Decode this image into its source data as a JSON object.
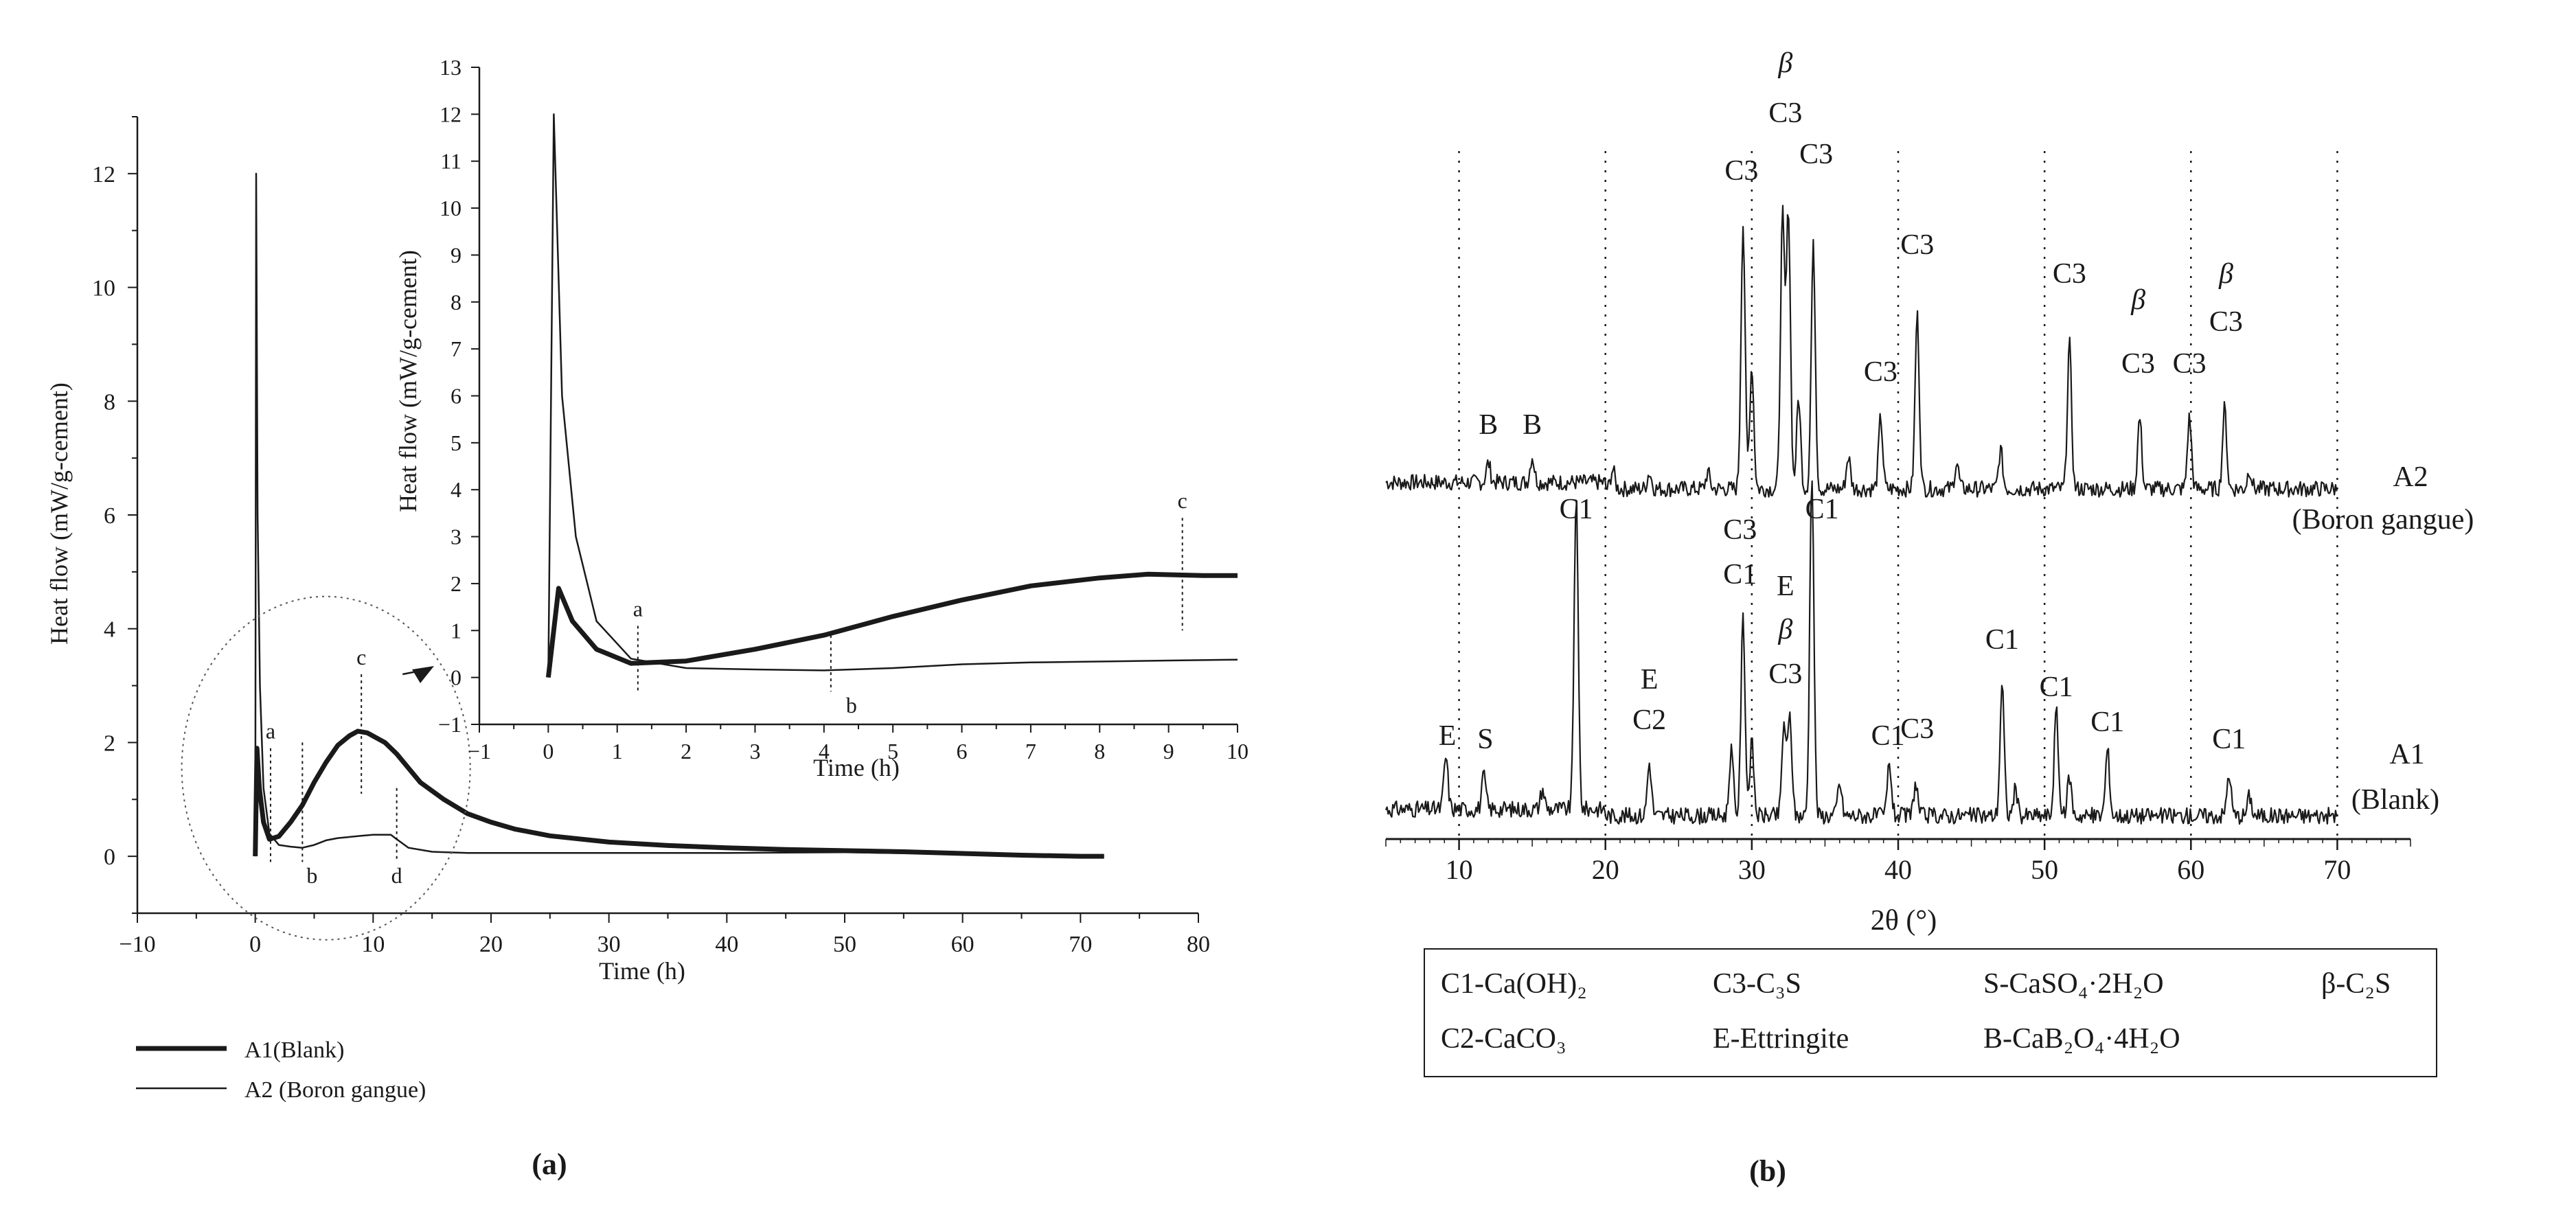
{
  "chart_data": [
    {
      "panel": "(a)",
      "type": "line",
      "xlabel": "Time (h)",
      "ylabel": "Heat flow (mW/g-cement)",
      "xlim": [
        -10,
        80
      ],
      "ylim": [
        -1,
        13
      ],
      "x_ticks": [
        "−10",
        "0",
        "10",
        "20",
        "30",
        "40",
        "50",
        "60",
        "70",
        "80"
      ],
      "y_ticks": [
        "0",
        "2",
        "4",
        "6",
        "8",
        "10",
        "12"
      ],
      "grid": false,
      "legend_position": "bottom-left",
      "series": [
        {
          "name": "A1(Blank)",
          "color": "#1a1a1a",
          "points": [
            [
              0,
              0
            ],
            [
              0.15,
              1.9
            ],
            [
              0.35,
              1.2
            ],
            [
              0.7,
              0.6
            ],
            [
              1.2,
              0.3
            ],
            [
              2,
              0.35
            ],
            [
              3,
              0.6
            ],
            [
              4,
              0.9
            ],
            [
              5,
              1.3
            ],
            [
              6,
              1.65
            ],
            [
              7,
              1.95
            ],
            [
              8,
              2.12
            ],
            [
              8.7,
              2.2
            ],
            [
              9.5,
              2.17
            ],
            [
              11,
              2.0
            ],
            [
              12,
              1.8
            ],
            [
              13,
              1.55
            ],
            [
              14,
              1.3
            ],
            [
              16,
              1.0
            ],
            [
              18,
              0.75
            ],
            [
              20,
              0.6
            ],
            [
              22,
              0.48
            ],
            [
              25,
              0.36
            ],
            [
              30,
              0.25
            ],
            [
              35,
              0.19
            ],
            [
              40,
              0.15
            ],
            [
              45,
              0.12
            ],
            [
              50,
              0.1
            ],
            [
              55,
              0.08
            ],
            [
              60,
              0.05
            ],
            [
              65,
              0.02
            ],
            [
              70,
              0.0
            ],
            [
              72,
              0.0
            ]
          ]
        },
        {
          "name": "A2 (Boron gangue)",
          "color": "#1a1a1a",
          "points": [
            [
              0,
              0
            ],
            [
              0.08,
              12.0
            ],
            [
              0.2,
              6.0
            ],
            [
              0.4,
              3.0
            ],
            [
              0.7,
              1.2
            ],
            [
              1.2,
              0.4
            ],
            [
              2,
              0.2
            ],
            [
              3,
              0.17
            ],
            [
              4,
              0.15
            ],
            [
              5,
              0.2
            ],
            [
              6,
              0.28
            ],
            [
              7,
              0.32
            ],
            [
              9,
              0.36
            ],
            [
              10,
              0.38
            ],
            [
              11.5,
              0.38
            ],
            [
              12,
              0.3
            ],
            [
              13,
              0.15
            ],
            [
              15,
              0.08
            ],
            [
              18,
              0.06
            ],
            [
              25,
              0.06
            ],
            [
              30,
              0.06
            ],
            [
              40,
              0.06
            ],
            [
              50,
              0.07
            ],
            [
              60,
              0.04
            ],
            [
              70,
              0.01
            ],
            [
              72,
              0.0
            ]
          ]
        }
      ],
      "markers": [
        {
          "label": "a",
          "x": 1.3
        },
        {
          "label": "b",
          "x": 4.0
        },
        {
          "label": "c",
          "x": 9.0
        },
        {
          "label": "d",
          "x": 12.0
        }
      ],
      "inset": {
        "xlabel": "Time (h)",
        "ylabel": "Heat flow (mW/g-cement)",
        "xlim": [
          -1,
          10
        ],
        "ylim": [
          -1,
          13
        ],
        "x_ticks": [
          "−1",
          "0",
          "1",
          "2",
          "3",
          "4",
          "5",
          "6",
          "7",
          "8",
          "9",
          "10"
        ],
        "y_ticks": [
          "−1",
          "0",
          "1",
          "2",
          "3",
          "4",
          "5",
          "6",
          "7",
          "8",
          "9",
          "10",
          "11",
          "12",
          "13"
        ],
        "markers": [
          {
            "label": "a",
            "x": 1.3
          },
          {
            "label": "b",
            "x": 4.1
          },
          {
            "label": "c",
            "x": 9.2
          }
        ]
      }
    },
    {
      "panel": "(b)",
      "type": "line",
      "xlabel": "2θ (°)",
      "xlim": [
        5,
        75
      ],
      "x_ticks": [
        "10",
        "20",
        "30",
        "40",
        "50",
        "60",
        "70"
      ],
      "grid": "vertical dotted at 10, 20, 30, 40, 50, 60, 70",
      "series": [
        {
          "name": "A2",
          "name_line2": "(Boron gangue)",
          "peaks": [
            [
              12.0,
              0.06
            ],
            [
              15.0,
              0.08
            ],
            [
              20.5,
              0.06
            ],
            [
              23,
              0.05
            ],
            [
              27,
              0.05
            ],
            [
              29.4,
              0.82
            ],
            [
              30.0,
              0.38
            ],
            [
              32.1,
              0.84
            ],
            [
              32.5,
              0.86
            ],
            [
              33.2,
              0.28
            ],
            [
              34.2,
              0.75
            ],
            [
              36.6,
              0.1
            ],
            [
              38.8,
              0.22
            ],
            [
              41.3,
              0.54
            ],
            [
              44.0,
              0.08
            ],
            [
              47.0,
              0.12
            ],
            [
              51.7,
              0.45
            ],
            [
              56.5,
              0.22
            ],
            [
              59.9,
              0.22
            ],
            [
              62.3,
              0.25
            ],
            [
              64.0,
              0.06
            ]
          ]
        },
        {
          "name": "A1",
          "name_line2": "(Blank)",
          "peaks": [
            [
              9.1,
              0.16
            ],
            [
              11.7,
              0.1
            ],
            [
              15.7,
              0.06
            ],
            [
              18.0,
              0.95
            ],
            [
              23.0,
              0.16
            ],
            [
              28.6,
              0.2
            ],
            [
              29.4,
              0.6
            ],
            [
              30.0,
              0.22
            ],
            [
              32.2,
              0.28
            ],
            [
              32.6,
              0.3
            ],
            [
              34.1,
              1.05
            ],
            [
              36.0,
              0.1
            ],
            [
              39.4,
              0.16
            ],
            [
              41.2,
              0.1
            ],
            [
              47.1,
              0.4
            ],
            [
              48.0,
              0.08
            ],
            [
              50.8,
              0.32
            ],
            [
              51.7,
              0.12
            ],
            [
              54.3,
              0.2
            ],
            [
              62.6,
              0.13
            ],
            [
              64.0,
              0.06
            ]
          ]
        }
      ],
      "annotations_a2": [
        {
          "text": "B",
          "x": 12.0
        },
        {
          "text": "B",
          "x": 15.0
        },
        {
          "text": "C3",
          "x": 29.3
        },
        {
          "text": "β",
          "x": 32.3
        },
        {
          "text": "C3",
          "x": 32.3
        },
        {
          "text": "C3",
          "x": 34.4
        },
        {
          "text": "C3",
          "x": 38.8
        },
        {
          "text": "C3",
          "x": 41.3
        },
        {
          "text": "C3",
          "x": 51.7
        },
        {
          "text": "β",
          "x": 56.4
        },
        {
          "text": "C3",
          "x": 56.4
        },
        {
          "text": "C3",
          "x": 59.9
        },
        {
          "text": "β",
          "x": 62.4
        },
        {
          "text": "C3",
          "x": 62.4
        }
      ],
      "annotations_a1": [
        {
          "text": "E",
          "x": 9.2
        },
        {
          "text": "S",
          "x": 11.8
        },
        {
          "text": "C1",
          "x": 18.0
        },
        {
          "text": "E",
          "x": 23.0
        },
        {
          "text": "C2",
          "x": 23.0
        },
        {
          "text": "C3",
          "x": 29.2
        },
        {
          "text": "C1",
          "x": 29.2
        },
        {
          "text": "E",
          "x": 32.3
        },
        {
          "text": "β",
          "x": 32.3
        },
        {
          "text": "C3",
          "x": 32.3
        },
        {
          "text": "C1",
          "x": 34.8
        },
        {
          "text": "C1",
          "x": 39.3
        },
        {
          "text": "C3",
          "x": 41.3
        },
        {
          "text": "C1",
          "x": 47.1
        },
        {
          "text": "C1",
          "x": 50.8
        },
        {
          "text": "C1",
          "x": 54.3
        },
        {
          "text": "C1",
          "x": 62.6
        }
      ],
      "legend_box": {
        "row1": [
          "C1-Ca(OH)₂",
          "C3-C₃S",
          "S-CaSO₄·2H₂O",
          "β-C₂S"
        ],
        "row2": [
          "C2-CaCO₃",
          "E-Ettringite",
          "B-CaB₂O₄·4H₂O"
        ]
      }
    }
  ]
}
